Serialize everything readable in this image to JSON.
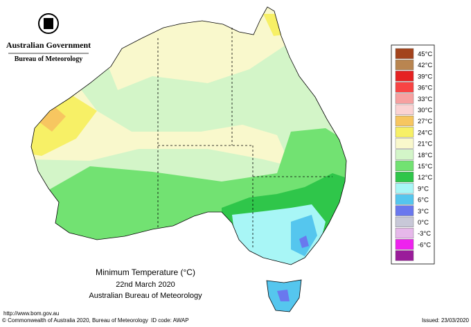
{
  "header": {
    "government": "Australian Government",
    "agency": "Bureau of Meteorology"
  },
  "legend": {
    "items": [
      {
        "label": "45°C",
        "color": "#a3431c"
      },
      {
        "label": "42°C",
        "color": "#b98550"
      },
      {
        "label": "39°C",
        "color": "#e52222"
      },
      {
        "label": "36°C",
        "color": "#f84444"
      },
      {
        "label": "33°C",
        "color": "#f7a0a0"
      },
      {
        "label": "30°C",
        "color": "#fbd3d3"
      },
      {
        "label": "27°C",
        "color": "#f7c660"
      },
      {
        "label": "24°C",
        "color": "#f7f066"
      },
      {
        "label": "21°C",
        "color": "#f9f8cc"
      },
      {
        "label": "18°C",
        "color": "#d3f5c8"
      },
      {
        "label": "15°C",
        "color": "#72e272"
      },
      {
        "label": "12°C",
        "color": "#2fc64a"
      },
      {
        "label": "9°C",
        "color": "#a8f6f6"
      },
      {
        "label": "6°C",
        "color": "#55c6ee"
      },
      {
        "label": "3°C",
        "color": "#6a78ee"
      },
      {
        "label": "0°C",
        "color": "#c8c8d8"
      },
      {
        "label": "-3°C",
        "color": "#e6b8ea"
      },
      {
        "label": "-6°C",
        "color": "#ee22ee"
      }
    ],
    "extra_color": "#9a1c9a"
  },
  "caption": {
    "title": "Minimum Temperature (°C)",
    "date": "22nd March 2020",
    "source": "Australian Bureau of Meteorology"
  },
  "footer": {
    "url": "http://www.bom.gov.au",
    "copyright": "© Commonwealth of Australia 2020, Bureau of Meteorology",
    "id_code": "ID code: AWAP",
    "issued": "Issued: 23/03/2020"
  }
}
